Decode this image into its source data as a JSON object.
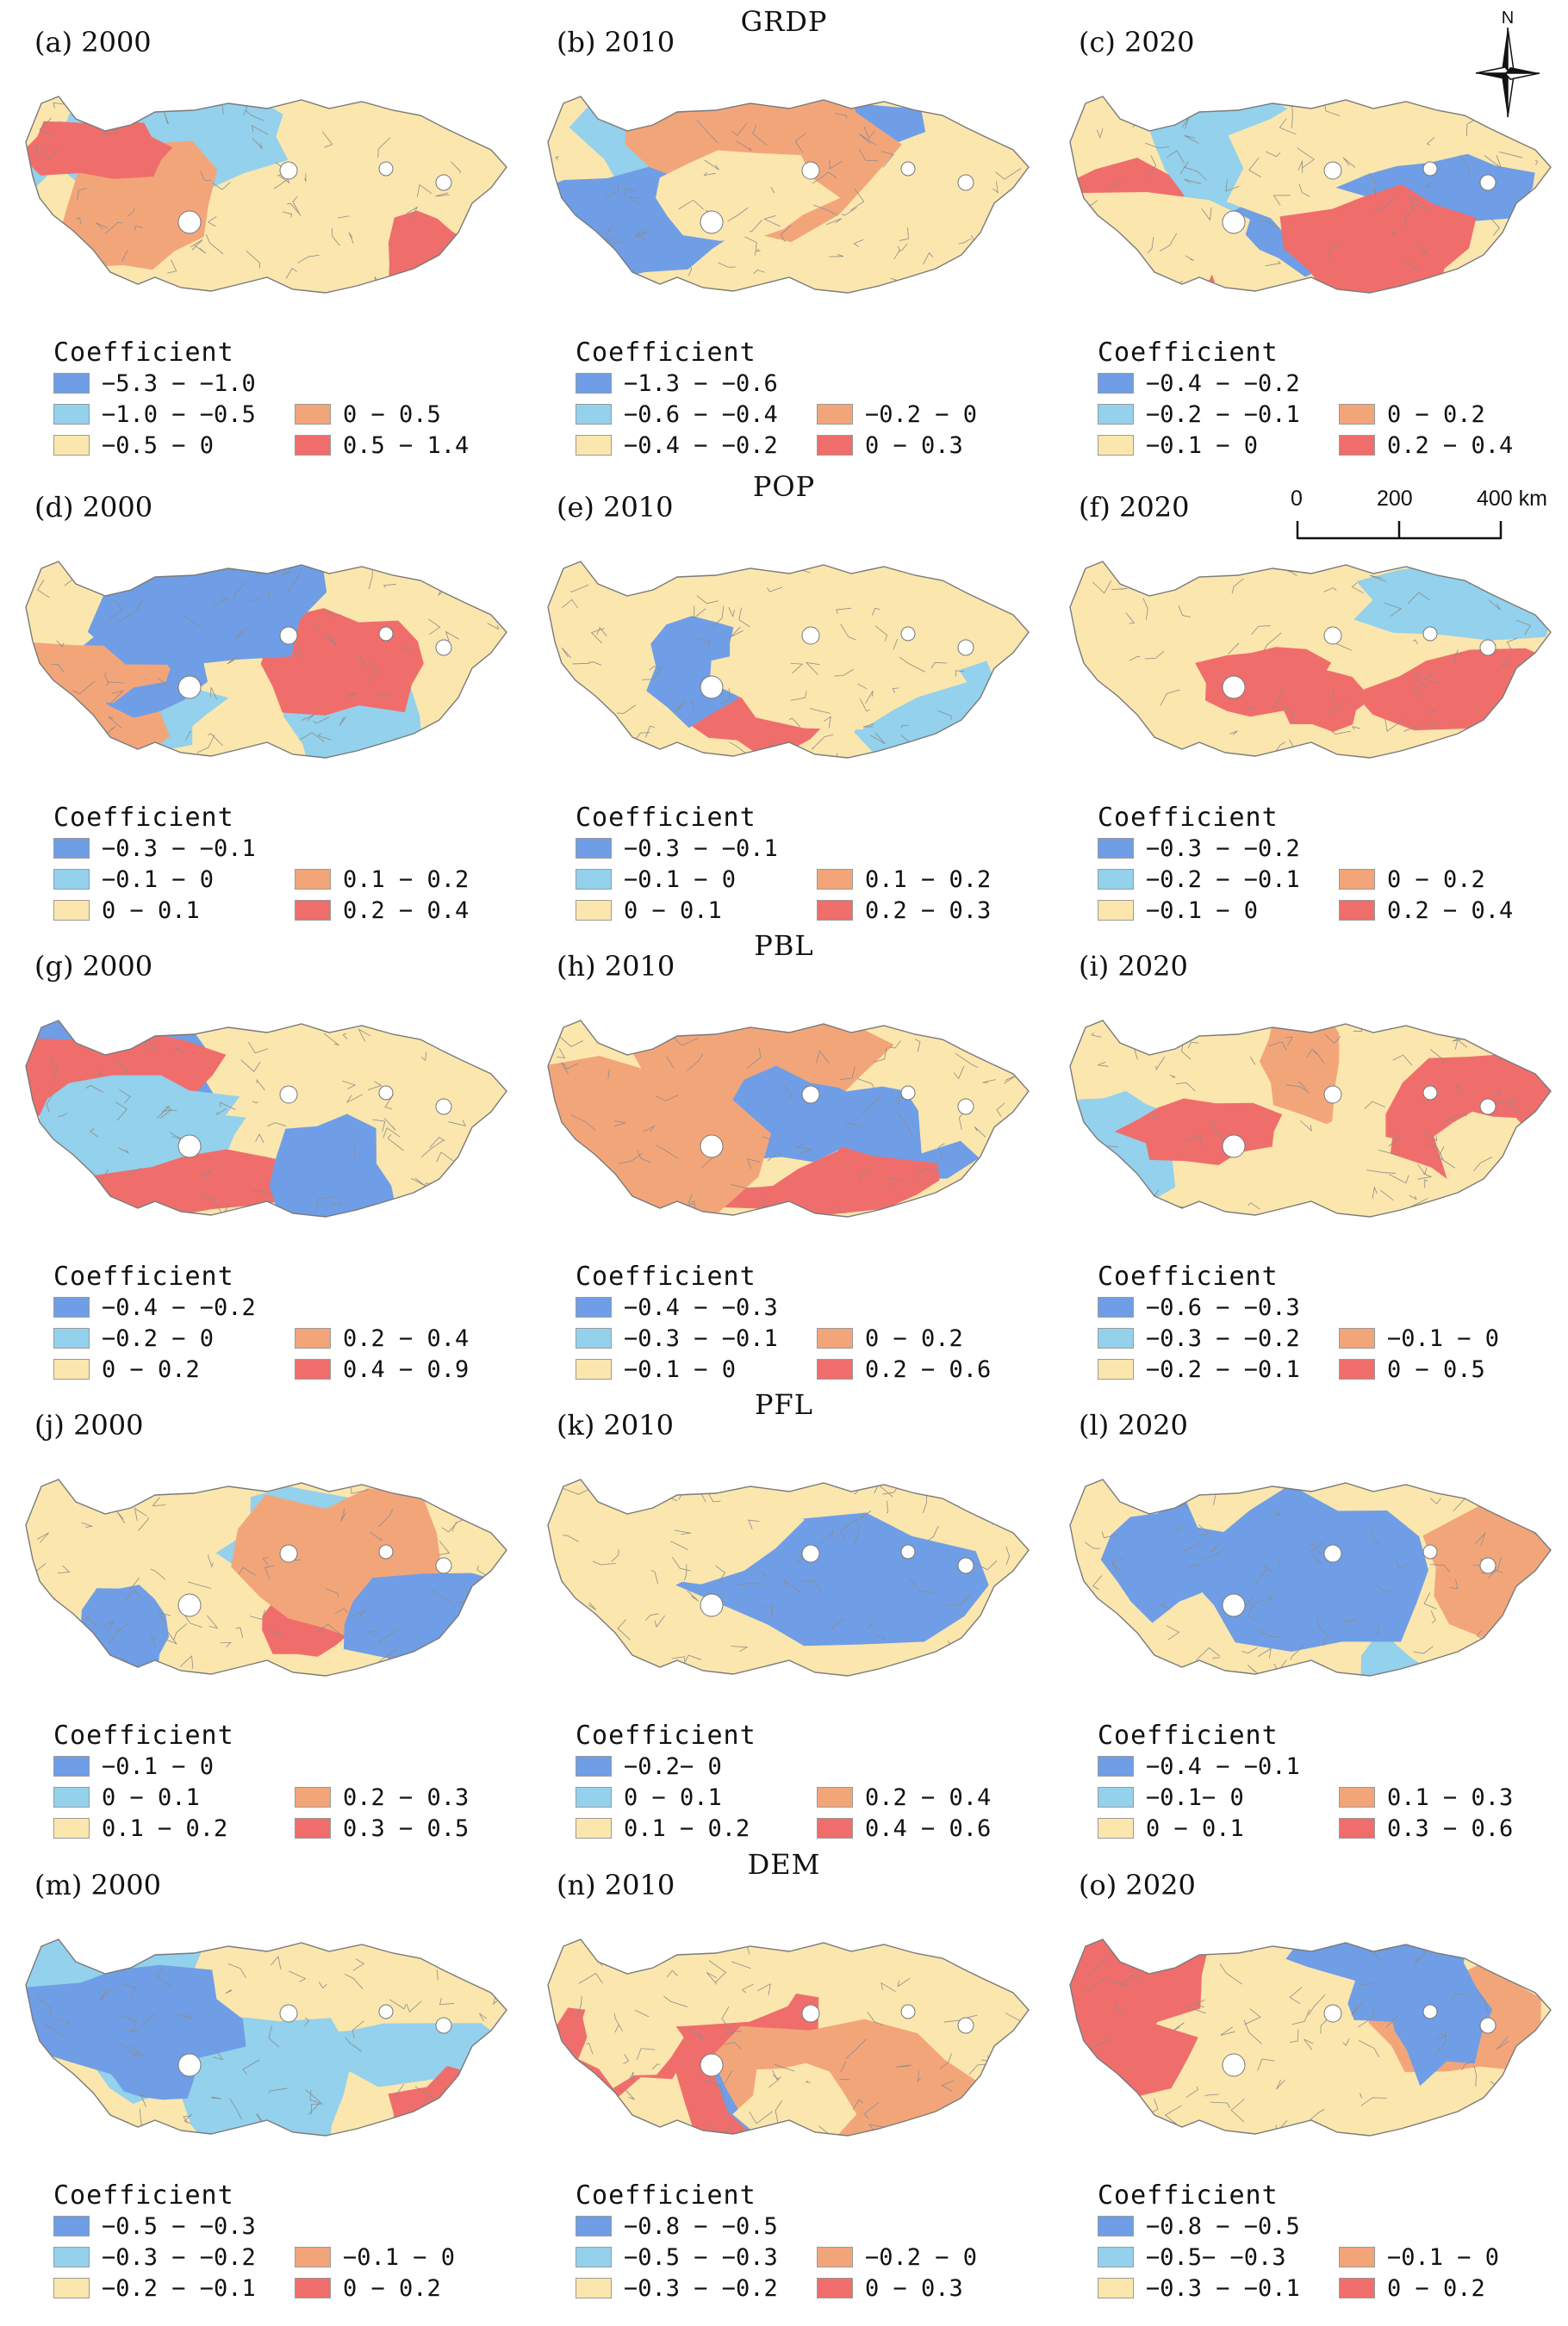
{
  "palette": {
    "dark_blue": "#6f9ee6",
    "light_blue": "#93d1ec",
    "cream": "#fbe6ad",
    "orange": "#f3a57a",
    "red": "#ef6e6c",
    "boundary": "#8c8c8c"
  },
  "north_arrow": {
    "letter": "N",
    "icon": "compass-rose-icon"
  },
  "scale_bar": {
    "labels": [
      "0",
      "200",
      "400 km"
    ]
  },
  "rows": [
    {
      "variable": "GRDP",
      "panels": [
        {
          "label": "(a)  2000",
          "legend": {
            "title": "Coefficient",
            "classes": [
              {
                "label": "−5.3 − −1.0",
                "color": "#6f9ee6"
              },
              {
                "label": "−1.0 − −0.5",
                "color": "#93d1ec"
              },
              {
                "label": "−0.5 − 0",
                "color": "#fbe6ad"
              },
              {
                "label": "0 − 0.5",
                "color": "#f3a57a"
              },
              {
                "label": "0.5 − 1.4",
                "color": "#ef6e6c"
              }
            ]
          }
        },
        {
          "label": "(b)  2010",
          "legend": {
            "title": "Coefficient",
            "classes": [
              {
                "label": "−1.3 − −0.6",
                "color": "#6f9ee6"
              },
              {
                "label": "−0.6 − −0.4",
                "color": "#93d1ec"
              },
              {
                "label": "−0.4 − −0.2",
                "color": "#fbe6ad"
              },
              {
                "label": "−0.2 − 0",
                "color": "#f3a57a"
              },
              {
                "label": "0 − 0.3",
                "color": "#ef6e6c"
              }
            ]
          }
        },
        {
          "label": "(c)  2020",
          "legend": {
            "title": "Coefficient",
            "classes": [
              {
                "label": "−0.4 − −0.2",
                "color": "#6f9ee6"
              },
              {
                "label": "−0.2 − −0.1",
                "color": "#93d1ec"
              },
              {
                "label": "−0.1 − 0",
                "color": "#fbe6ad"
              },
              {
                "label": "0 − 0.2",
                "color": "#f3a57a"
              },
              {
                "label": "0.2 − 0.4",
                "color": "#ef6e6c"
              }
            ]
          }
        }
      ]
    },
    {
      "variable": "POP",
      "panels": [
        {
          "label": "(d)  2000",
          "legend": {
            "title": "Coefficient",
            "classes": [
              {
                "label": "−0.3 − −0.1",
                "color": "#6f9ee6"
              },
              {
                "label": "−0.1 − 0",
                "color": "#93d1ec"
              },
              {
                "label": "0 − 0.1",
                "color": "#fbe6ad"
              },
              {
                "label": "0.1 − 0.2",
                "color": "#f3a57a"
              },
              {
                "label": "0.2 − 0.4",
                "color": "#ef6e6c"
              }
            ]
          }
        },
        {
          "label": "(e)  2010",
          "legend": {
            "title": "Coefficient",
            "classes": [
              {
                "label": "−0.3 − −0.1",
                "color": "#6f9ee6"
              },
              {
                "label": "−0.1 − 0",
                "color": "#93d1ec"
              },
              {
                "label": "0 − 0.1",
                "color": "#fbe6ad"
              },
              {
                "label": "0.1 − 0.2",
                "color": "#f3a57a"
              },
              {
                "label": "0.2 − 0.3",
                "color": "#ef6e6c"
              }
            ]
          }
        },
        {
          "label": "(f)  2020",
          "legend": {
            "title": "Coefficient",
            "classes": [
              {
                "label": "−0.3 − −0.2",
                "color": "#6f9ee6"
              },
              {
                "label": "−0.2 − −0.1",
                "color": "#93d1ec"
              },
              {
                "label": "−0.1 − 0",
                "color": "#fbe6ad"
              },
              {
                "label": "0 − 0.2",
                "color": "#f3a57a"
              },
              {
                "label": "0.2 − 0.4",
                "color": "#ef6e6c"
              }
            ]
          }
        }
      ]
    },
    {
      "variable": "PBL",
      "panels": [
        {
          "label": "(g)  2000",
          "legend": {
            "title": "Coefficient",
            "classes": [
              {
                "label": "−0.4 − −0.2",
                "color": "#6f9ee6"
              },
              {
                "label": "−0.2 − 0",
                "color": "#93d1ec"
              },
              {
                "label": "0 − 0.2",
                "color": "#fbe6ad"
              },
              {
                "label": "0.2 − 0.4",
                "color": "#f3a57a"
              },
              {
                "label": "0.4 − 0.9",
                "color": "#ef6e6c"
              }
            ]
          }
        },
        {
          "label": "(h)  2010",
          "legend": {
            "title": "Coefficient",
            "classes": [
              {
                "label": "−0.4 − −0.3",
                "color": "#6f9ee6"
              },
              {
                "label": "−0.3 − −0.1",
                "color": "#93d1ec"
              },
              {
                "label": "−0.1 − 0",
                "color": "#fbe6ad"
              },
              {
                "label": "0 − 0.2",
                "color": "#f3a57a"
              },
              {
                "label": "0.2 − 0.6",
                "color": "#ef6e6c"
              }
            ]
          }
        },
        {
          "label": "(i)  2020",
          "legend": {
            "title": "Coefficient",
            "classes": [
              {
                "label": "−0.6 − −0.3",
                "color": "#6f9ee6"
              },
              {
                "label": "−0.3 − −0.2",
                "color": "#93d1ec"
              },
              {
                "label": "−0.2 − −0.1",
                "color": "#fbe6ad"
              },
              {
                "label": "−0.1 − 0",
                "color": "#f3a57a"
              },
              {
                "label": "0 − 0.5",
                "color": "#ef6e6c"
              }
            ]
          }
        }
      ]
    },
    {
      "variable": "PFL",
      "panels": [
        {
          "label": "(j)  2000",
          "legend": {
            "title": "Coefficient",
            "classes": [
              {
                "label": "−0.1 − 0",
                "color": "#6f9ee6"
              },
              {
                "label": "0 − 0.1",
                "color": "#93d1ec"
              },
              {
                "label": "0.1 − 0.2",
                "color": "#fbe6ad"
              },
              {
                "label": "0.2 − 0.3",
                "color": "#f3a57a"
              },
              {
                "label": "0.3 − 0.5",
                "color": "#ef6e6c"
              }
            ]
          }
        },
        {
          "label": "(k)  2010",
          "legend": {
            "title": "Coefficient",
            "classes": [
              {
                "label": "−0.2− 0",
                "color": "#6f9ee6"
              },
              {
                "label": "0 − 0.1",
                "color": "#93d1ec"
              },
              {
                "label": "0.1 − 0.2",
                "color": "#fbe6ad"
              },
              {
                "label": "0.2 − 0.4",
                "color": "#f3a57a"
              },
              {
                "label": "0.4 − 0.6",
                "color": "#ef6e6c"
              }
            ]
          }
        },
        {
          "label": "(l)  2020",
          "legend": {
            "title": "Coefficient",
            "classes": [
              {
                "label": "−0.4 − −0.1",
                "color": "#6f9ee6"
              },
              {
                "label": "−0.1− 0",
                "color": "#93d1ec"
              },
              {
                "label": "0 − 0.1",
                "color": "#fbe6ad"
              },
              {
                "label": "0.1 − 0.3",
                "color": "#f3a57a"
              },
              {
                "label": "0.3 − 0.6",
                "color": "#ef6e6c"
              }
            ]
          }
        }
      ]
    },
    {
      "variable": "DEM",
      "panels": [
        {
          "label": "(m)  2000",
          "legend": {
            "title": "Coefficient",
            "classes": [
              {
                "label": "−0.5 − −0.3",
                "color": "#6f9ee6"
              },
              {
                "label": "−0.3 − −0.2",
                "color": "#93d1ec"
              },
              {
                "label": "−0.2 − −0.1",
                "color": "#fbe6ad"
              },
              {
                "label": "−0.1 − 0",
                "color": "#f3a57a"
              },
              {
                "label": "0 − 0.2",
                "color": "#ef6e6c"
              }
            ]
          }
        },
        {
          "label": "(n)  2010",
          "legend": {
            "title": "Coefficient",
            "classes": [
              {
                "label": "−0.8 − −0.5",
                "color": "#6f9ee6"
              },
              {
                "label": "−0.5 − −0.3",
                "color": "#93d1ec"
              },
              {
                "label": "−0.3 − −0.2",
                "color": "#fbe6ad"
              },
              {
                "label": "−0.2 − 0",
                "color": "#f3a57a"
              },
              {
                "label": "0 − 0.3",
                "color": "#ef6e6c"
              }
            ]
          }
        },
        {
          "label": "(o)  2020",
          "legend": {
            "title": "Coefficient",
            "classes": [
              {
                "label": "−0.8 − −0.5",
                "color": "#6f9ee6"
              },
              {
                "label": "−0.5− −0.3",
                "color": "#93d1ec"
              },
              {
                "label": "−0.3 − −0.1",
                "color": "#fbe6ad"
              },
              {
                "label": "−0.1 − 0",
                "color": "#f3a57a"
              },
              {
                "label": "0 − 0.2",
                "color": "#ef6e6c"
              }
            ]
          }
        }
      ]
    }
  ]
}
